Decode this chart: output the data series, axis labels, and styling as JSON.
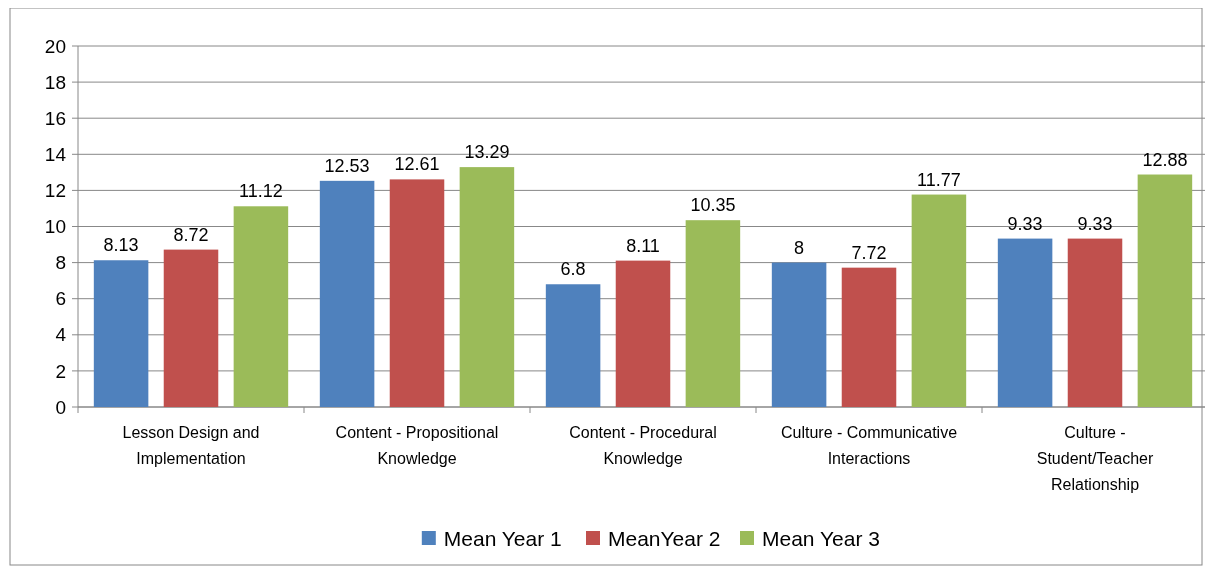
{
  "chart_data": {
    "type": "bar",
    "categories": [
      "Lesson Design and Implementation",
      "Content - Propositional Knowledge",
      "Content - Procedural Knowledge",
      "Culture - Communicative Interactions",
      "Culture - Student/Teacher Relationship"
    ],
    "series": [
      {
        "name": "Mean Year 1",
        "color": "#4f81bd",
        "values": [
          8.13,
          12.53,
          6.8,
          8,
          9.33
        ]
      },
      {
        "name": "MeanYear 2",
        "color": "#c0504d",
        "values": [
          8.72,
          12.61,
          8.11,
          7.72,
          9.33
        ]
      },
      {
        "name": "Mean Year 3",
        "color": "#9bbb59",
        "values": [
          11.12,
          13.29,
          10.35,
          11.77,
          12.88
        ]
      }
    ],
    "ylim": [
      0,
      20
    ],
    "yticks": [
      0,
      2,
      4,
      6,
      8,
      10,
      12,
      14,
      16,
      18,
      20
    ],
    "grid": "y",
    "legend": "bottom",
    "data_labels": true
  }
}
